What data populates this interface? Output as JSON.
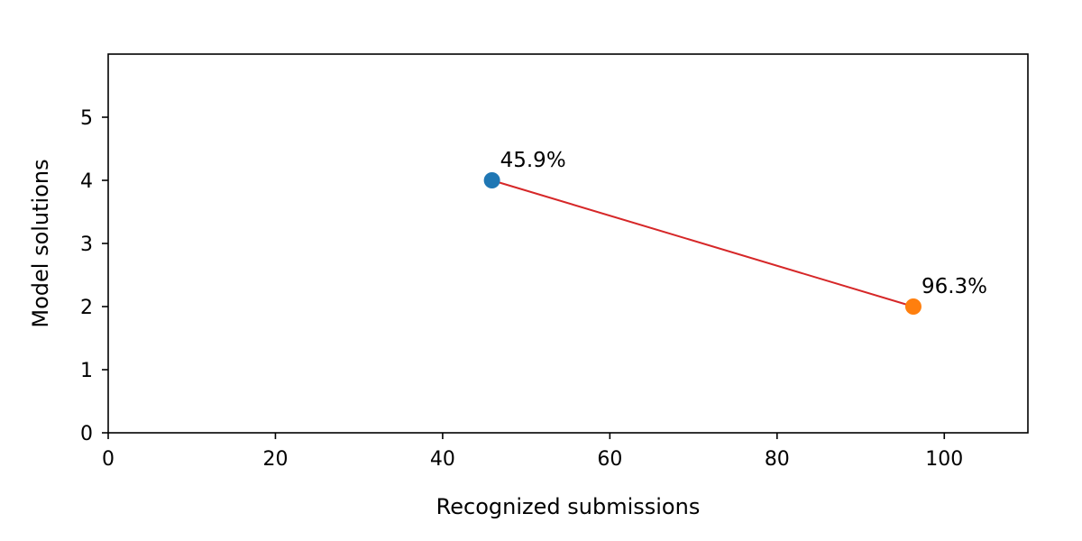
{
  "chart_data": {
    "type": "scatter",
    "title": "",
    "xlabel": "Recognized submissions",
    "ylabel": "Model solutions",
    "xlim": [
      0,
      110
    ],
    "ylim": [
      0,
      6
    ],
    "x_ticks": [
      0,
      20,
      40,
      60,
      80,
      100
    ],
    "y_ticks": [
      0,
      1,
      2,
      3,
      4,
      5
    ],
    "grid": false,
    "points": [
      {
        "x": 45.9,
        "y": 4,
        "label": "45.9%",
        "color": "#1f77b4"
      },
      {
        "x": 96.3,
        "y": 2,
        "label": "96.3%",
        "color": "#ff7f0e"
      }
    ],
    "connector": {
      "from": 0,
      "to": 1,
      "color": "#d62728"
    }
  }
}
